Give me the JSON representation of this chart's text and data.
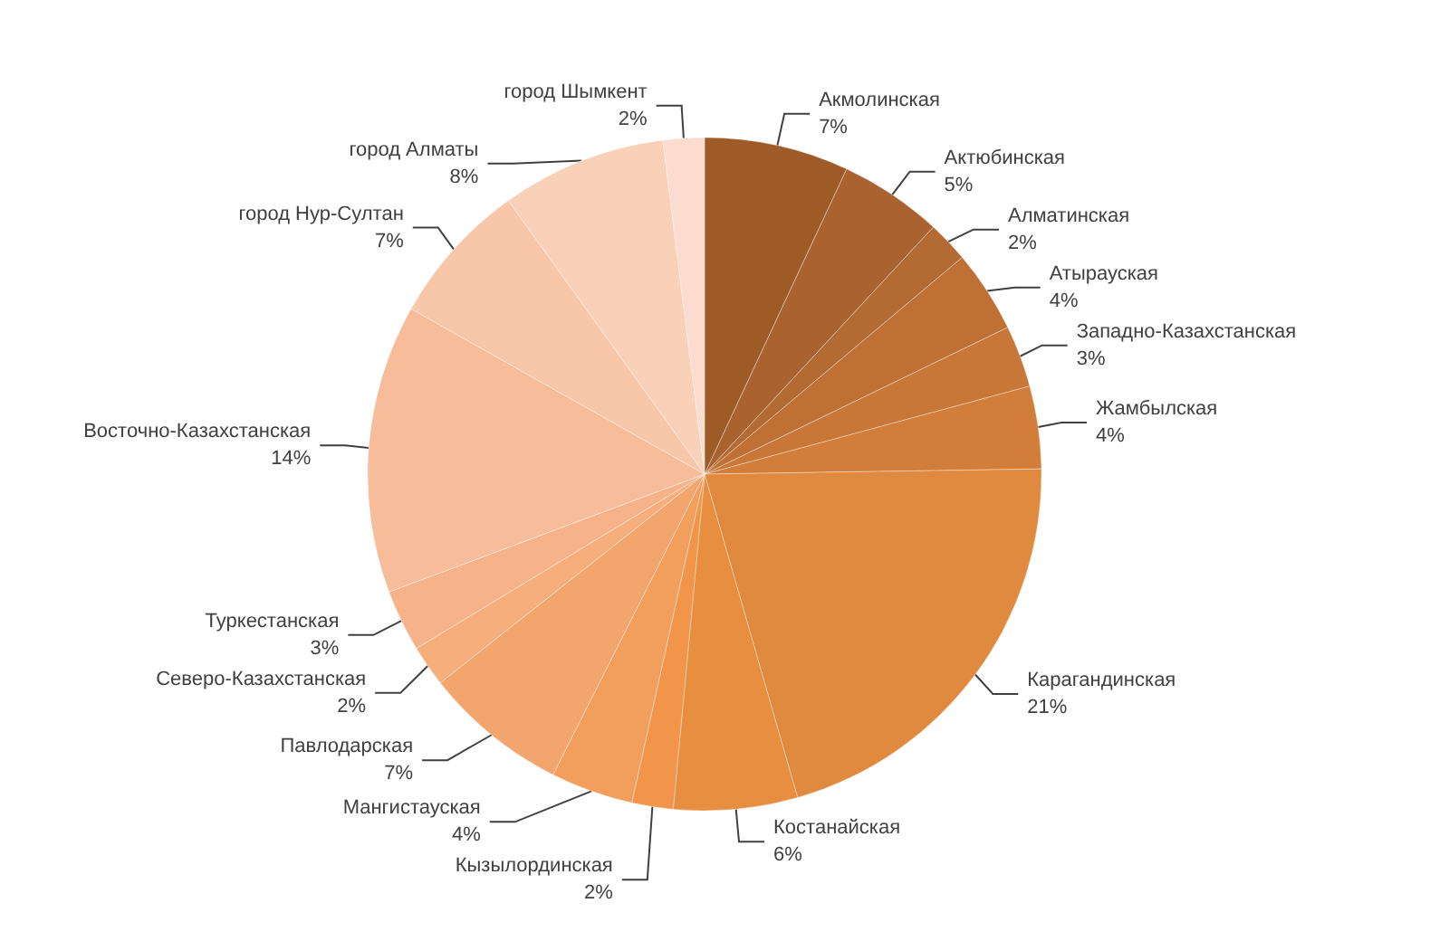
{
  "chart_data": {
    "type": "pie",
    "categories": [
      "Акмолинская",
      "Актюбинская",
      "Алматинская",
      "Атырауская",
      "Западно-Казахстанская",
      "Жамбылская",
      "Карагандинская",
      "Костанайская",
      "Кызылординская",
      "Мангистауская",
      "Павлодарская",
      "Северо-Казахстанская",
      "Туркестанская",
      "Восточно-Казахстанская",
      "город Нур-Султан",
      "город Алматы",
      "город Шымкент"
    ],
    "values": [
      7,
      5,
      2,
      4,
      3,
      4,
      21,
      6,
      2,
      4,
      7,
      2,
      3,
      14,
      7,
      8,
      2
    ],
    "value_labels": [
      "7%",
      "5%",
      "2%",
      "4%",
      "3%",
      "4%",
      "21%",
      "6%",
      "2%",
      "4%",
      "7%",
      "2%",
      "3%",
      "14%",
      "7%",
      "8%",
      "2%"
    ],
    "colors": [
      "#9e5b28",
      "#aa6330",
      "#b46a33",
      "#bf7034",
      "#c97738",
      "#d37d3a",
      "#e08a3f",
      "#e88e40",
      "#f0954a",
      "#f29f5e",
      "#f3a56e",
      "#f5ae7c",
      "#f6b38a",
      "#f7bd9a",
      "#f8c6a8",
      "#f9d0b8",
      "#fbdccf"
    ],
    "legend": false
  }
}
